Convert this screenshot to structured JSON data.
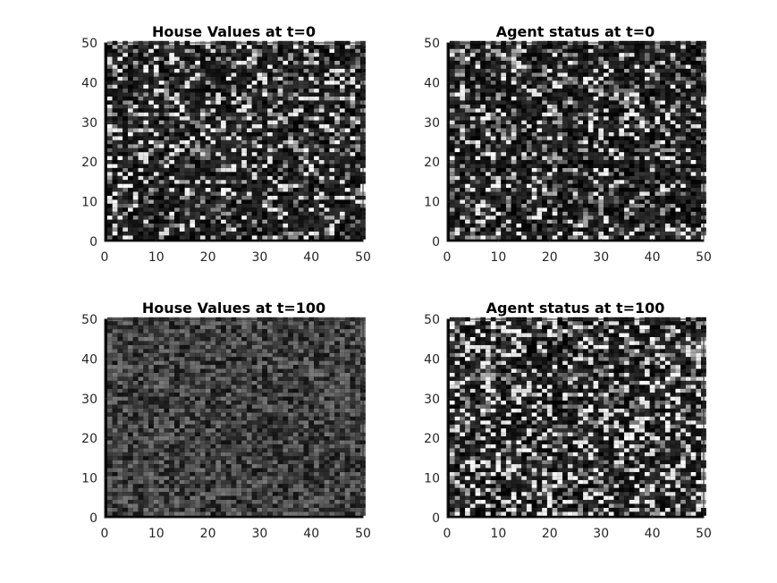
{
  "chart_data": [
    {
      "type": "heatmap",
      "title": "House Values at t=0",
      "xlim": [
        0,
        50
      ],
      "ylim": [
        0,
        50
      ],
      "xticks": [
        0,
        10,
        20,
        30,
        40,
        50
      ],
      "yticks": [
        0,
        10,
        20,
        30,
        40,
        50
      ],
      "grid_size": [
        50,
        50
      ],
      "colormap": "gray",
      "description_values": "random gray intensities in [0,1], mostly dark with scattered bright cells",
      "value_profile": {
        "mean": 0.22,
        "spread": "high",
        "bright_fraction": 0.12
      },
      "seed": 11
    },
    {
      "type": "heatmap",
      "title": "Agent status at t=0",
      "xlim": [
        0,
        50
      ],
      "ylim": [
        0,
        50
      ],
      "xticks": [
        0,
        10,
        20,
        30,
        40,
        50
      ],
      "yticks": [
        0,
        10,
        20,
        30,
        40,
        50
      ],
      "grid_size": [
        50,
        50
      ],
      "colormap": "gray",
      "value_profile": {
        "mean": 0.18,
        "spread": "high",
        "bright_fraction": 0.11
      },
      "seed": 23
    },
    {
      "type": "heatmap",
      "title": "House Values at t=100",
      "xlim": [
        0,
        50
      ],
      "ylim": [
        0,
        50
      ],
      "xticks": [
        0,
        10,
        20,
        30,
        40,
        50
      ],
      "yticks": [
        0,
        10,
        20,
        30,
        40,
        50
      ],
      "grid_size": [
        50,
        50
      ],
      "colormap": "gray",
      "value_profile": {
        "mean": 0.28,
        "spread": "low",
        "bright_fraction": 0.0
      },
      "seed": 37
    },
    {
      "type": "heatmap",
      "title": "Agent status at t=100",
      "xlim": [
        0,
        50
      ],
      "ylim": [
        0,
        50
      ],
      "xticks": [
        0,
        10,
        20,
        30,
        40,
        50
      ],
      "yticks": [
        0,
        10,
        20,
        30,
        40,
        50
      ],
      "grid_size": [
        50,
        50
      ],
      "colormap": "gray",
      "value_profile": {
        "mean": 0.25,
        "spread": "high",
        "bright_fraction": 0.2
      },
      "seed": 53
    }
  ]
}
